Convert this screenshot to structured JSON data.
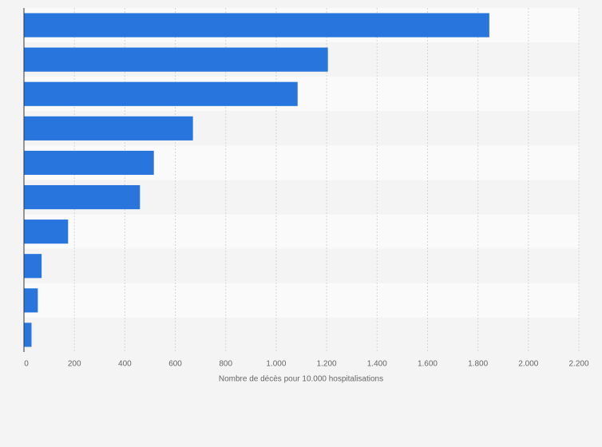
{
  "chart_data": {
    "type": "bar",
    "orientation": "horizontal",
    "x_label": "Nombre de décès pour 10.000 hospitalisations",
    "categories": [
      null,
      null,
      null,
      null,
      null,
      null,
      null,
      null,
      null,
      null
    ],
    "values": [
      1845,
      1205,
      1085,
      670,
      515,
      460,
      175,
      70,
      55,
      30
    ],
    "color": "#2876dd",
    "xlim": [
      0,
      2200
    ],
    "xticks": [
      0,
      200,
      400,
      600,
      800,
      {
        "value": 1000,
        "label": "1.000"
      },
      {
        "value": 1200,
        "label": "1.200"
      },
      {
        "value": 1400,
        "label": "1.400"
      },
      {
        "value": 1600,
        "label": "1.600"
      },
      {
        "value": 1800,
        "label": "1.800"
      },
      {
        "value": 2000,
        "label": "2.000"
      },
      {
        "value": 2200,
        "label": "2.200"
      }
    ],
    "grid": true
  }
}
